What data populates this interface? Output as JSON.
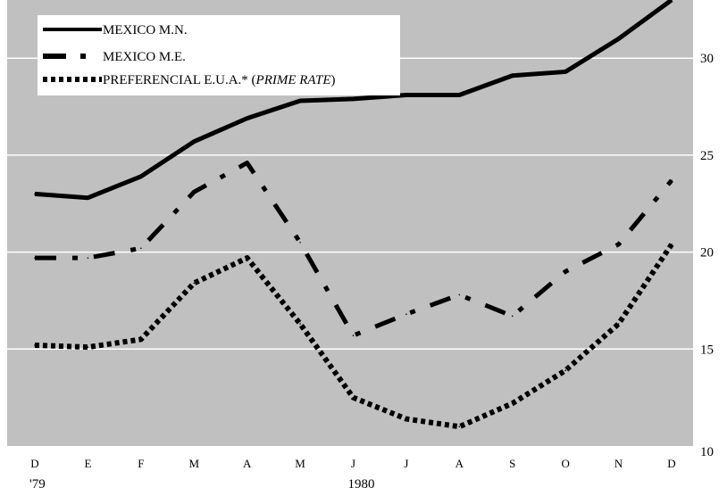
{
  "colors": {
    "plot_bg": "#c0c0c0",
    "grid": "#ffffff",
    "line": "#000000",
    "legend_bg": "#ffffff",
    "page_bg": "#ffffff"
  },
  "chart_data": {
    "type": "line",
    "categories": [
      "D",
      "E",
      "F",
      "M",
      "A",
      "M",
      "J",
      "J",
      "A",
      "S",
      "O",
      "N",
      "D"
    ],
    "year_labels": [
      {
        "category_index": 0,
        "text": "'79"
      },
      {
        "category_index": 6,
        "text": "1980"
      }
    ],
    "ylim": [
      10,
      33
    ],
    "y_ticks": [
      10,
      15,
      20,
      25,
      30
    ],
    "grid": true,
    "legend_placement": "top-left",
    "series": [
      {
        "name": "MEXICO M.N.",
        "style": "solid",
        "values": [
          23.0,
          22.8,
          23.9,
          25.7,
          26.9,
          27.8,
          27.9,
          28.1,
          28.1,
          29.1,
          29.3,
          31.0,
          33.0
        ]
      },
      {
        "name": "MEXICO M.E.",
        "style": "dash-dot",
        "values": [
          19.7,
          19.7,
          20.2,
          23.1,
          24.6,
          20.5,
          15.7,
          16.8,
          17.8,
          16.7,
          19.0,
          20.4,
          23.7
        ]
      },
      {
        "name": "PREFERENCIAL E.U.A.* (PRIME RATE)",
        "name_main": "PREFERENCIAL E.U.A.* (",
        "name_italic": "PRIME RATE",
        "name_tail": ")",
        "style": "dotted",
        "values": [
          15.2,
          15.1,
          15.5,
          18.4,
          19.7,
          16.3,
          12.5,
          11.4,
          11.0,
          12.2,
          13.9,
          16.3,
          20.4
        ]
      }
    ]
  }
}
